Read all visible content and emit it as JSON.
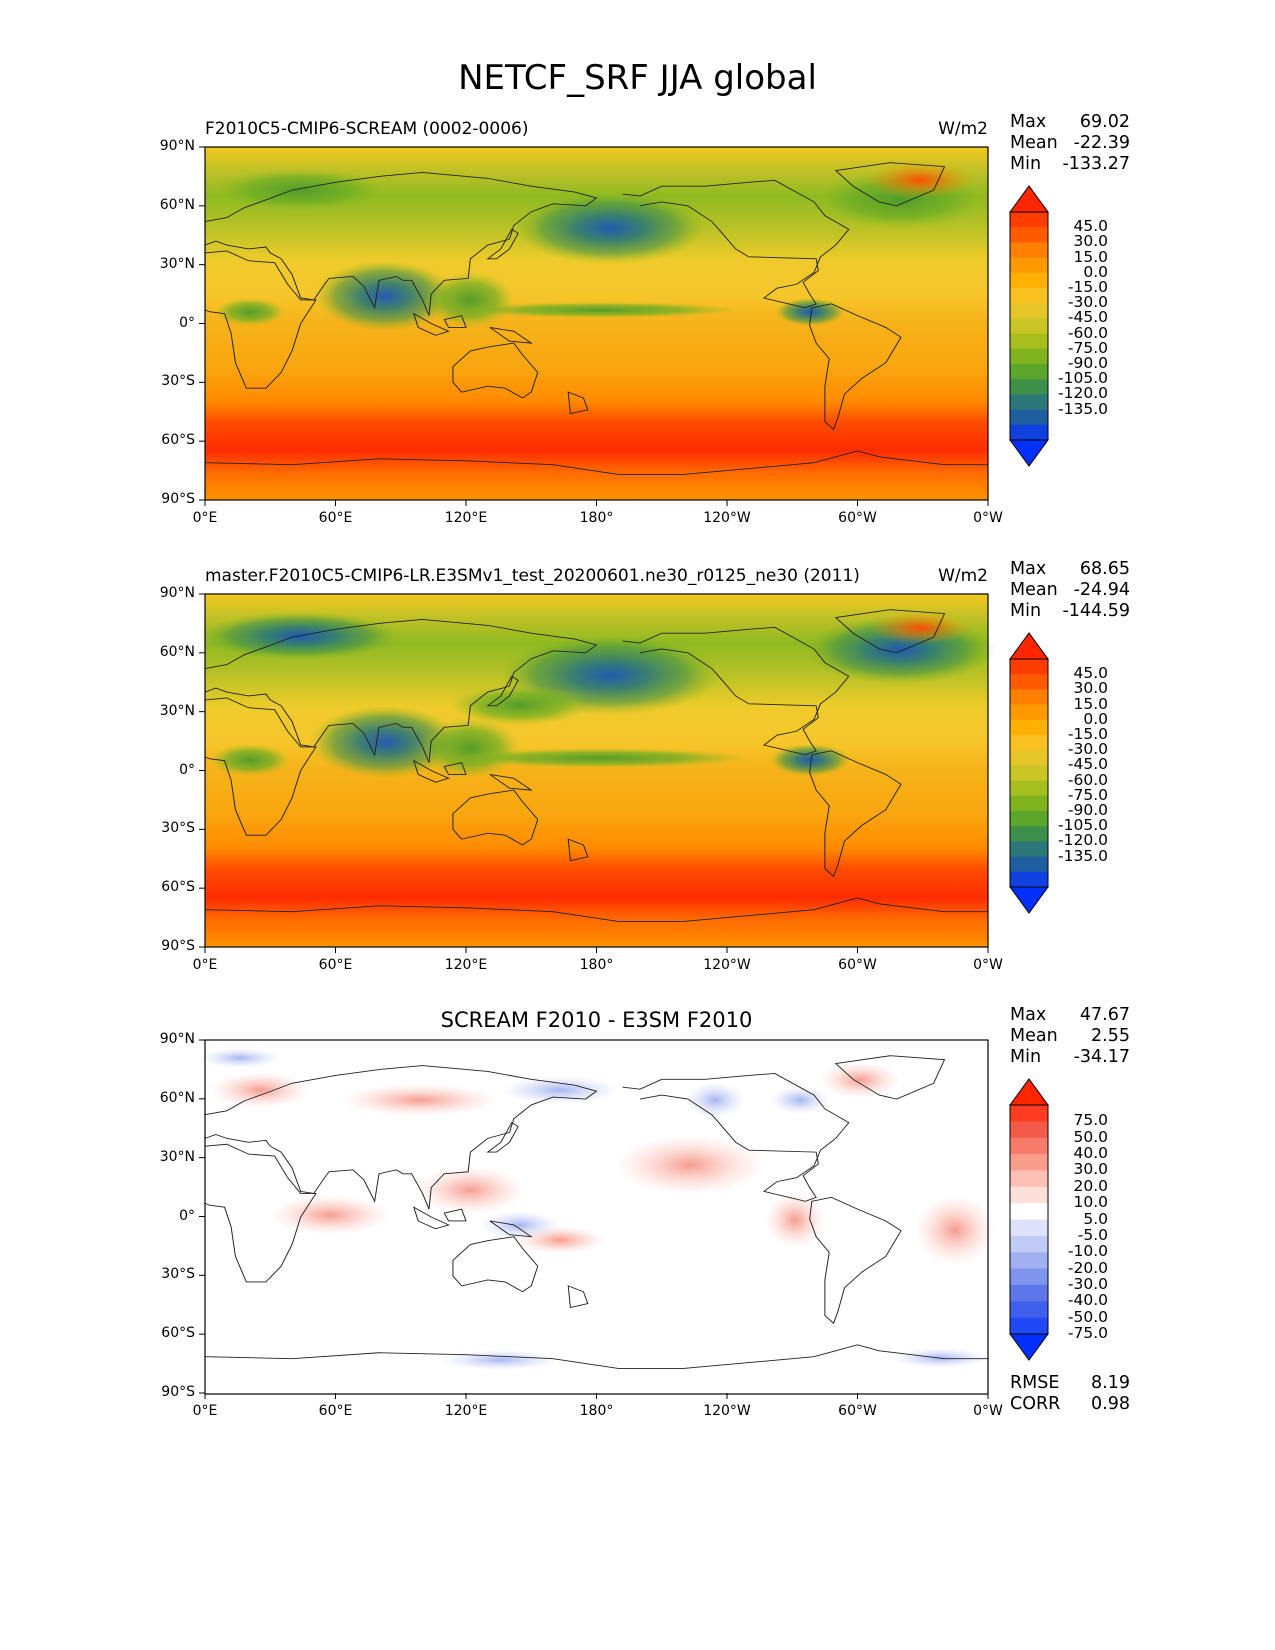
{
  "figure": {
    "title": "NETCF_SRF JJA global"
  },
  "axes": {
    "lat_ticks": [
      "90°N",
      "60°N",
      "30°N",
      "0°",
      "30°S",
      "60°S",
      "90°S"
    ],
    "lon_ticks": [
      "0°E",
      "60°E",
      "120°E",
      "180°",
      "120°W",
      "60°W",
      "0°W"
    ]
  },
  "panels": [
    {
      "title": "F2010C5-CMIP6-SCREAM (0002-0006)",
      "units": "W/m2",
      "stats": [
        {
          "label": "Max",
          "value": "69.02"
        },
        {
          "label": "Mean",
          "value": "-22.39"
        },
        {
          "label": "Min",
          "value": "-133.27"
        }
      ],
      "colorbar_labels": [
        "45.0",
        "30.0",
        "15.0",
        "0.0",
        "-15.0",
        "-30.0",
        "-45.0",
        "-60.0",
        "-75.0",
        "-90.0",
        "-105.0",
        "-120.0",
        "-135.0"
      ],
      "colorbar_colors": [
        "#ff2600",
        "#ff3c00",
        "#ff5a00",
        "#ff7f00",
        "#ff9900",
        "#ffb000",
        "#f8c020",
        "#e6c528",
        "#c9c524",
        "#a6be1e",
        "#7fb31e",
        "#5aa52a",
        "#3e8f48",
        "#2c7878",
        "#1f5fa0",
        "#1040e0",
        "#0030ff"
      ]
    },
    {
      "title": "master.F2010C5-CMIP6-LR.E3SMv1_test_20200601.ne30_r0125_ne30 (2011)",
      "units": "W/m2",
      "stats": [
        {
          "label": "Max",
          "value": "68.65"
        },
        {
          "label": "Mean",
          "value": "-24.94"
        },
        {
          "label": "Min",
          "value": "-144.59"
        }
      ],
      "colorbar_labels": [
        "45.0",
        "30.0",
        "15.0",
        "0.0",
        "-15.0",
        "-30.0",
        "-45.0",
        "-60.0",
        "-75.0",
        "-90.0",
        "-105.0",
        "-120.0",
        "-135.0"
      ],
      "colorbar_colors": [
        "#ff2600",
        "#ff3c00",
        "#ff5a00",
        "#ff7f00",
        "#ff9900",
        "#ffb000",
        "#f8c020",
        "#e6c528",
        "#c9c524",
        "#a6be1e",
        "#7fb31e",
        "#5aa52a",
        "#3e8f48",
        "#2c7878",
        "#1f5fa0",
        "#1040e0",
        "#0030ff"
      ]
    },
    {
      "title": "SCREAM F2010 - E3SM F2010",
      "units": "",
      "stats": [
        {
          "label": "Max",
          "value": "47.67"
        },
        {
          "label": "Mean",
          "value": "2.55"
        },
        {
          "label": "Min",
          "value": "-34.17"
        }
      ],
      "colorbar_labels": [
        "75.0",
        "50.0",
        "40.0",
        "30.0",
        "20.0",
        "10.0",
        "5.0",
        "-5.0",
        "-10.0",
        "-20.0",
        "-30.0",
        "-40.0",
        "-50.0",
        "-75.0"
      ],
      "colorbar_colors": [
        "#ff2600",
        "#ff3c20",
        "#f25a4a",
        "#f77a6a",
        "#fa9c8c",
        "#fcc0b4",
        "#fde0d8",
        "#ffffff",
        "#dde3fb",
        "#c0cbf6",
        "#a0b0f0",
        "#7f94ec",
        "#5f76ea",
        "#4060ec",
        "#2048f6",
        "#0030ff"
      ],
      "metrics": [
        {
          "label": "RMSE",
          "value": "8.19"
        },
        {
          "label": "CORR",
          "value": "0.98"
        }
      ]
    }
  ]
}
